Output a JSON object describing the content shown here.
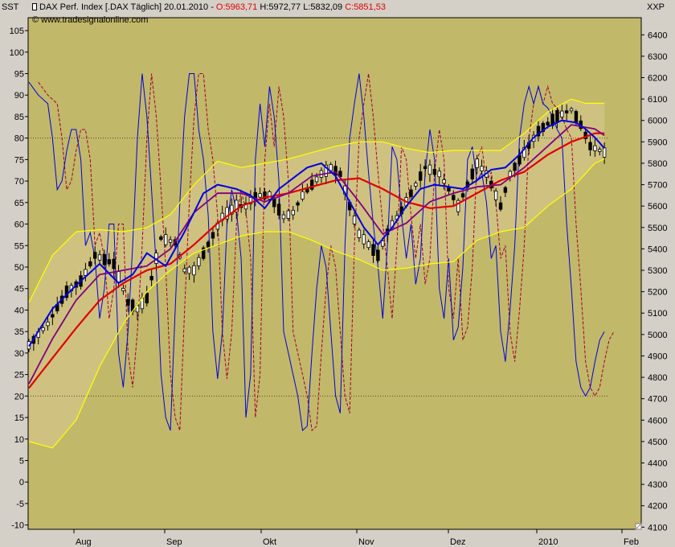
{
  "header": {
    "left_axis_label": "SST",
    "right_axis_label": "XXP",
    "instrument": "DAX Perf. Index [.DAX  Täglich] 20.01.2010 - ",
    "open": "O:5963,71",
    "high": "H:5972,77",
    "low": "L:5832,09",
    "close": "C:5851,53",
    "copyright": "© www.tradesignalonline.com"
  },
  "colors": {
    "background": "#c2b86a",
    "frame": "#d4d0c8",
    "candle": "#000000",
    "ma_blue": "#0000e0",
    "ma_purple": "#800080",
    "ma_red": "#e00000",
    "bollinger": "#ffff00",
    "band_fill": "#d3c689",
    "oscillator": "#0000dd",
    "oscillator_signal": "#a00030"
  },
  "chart_data": {
    "type": "line",
    "title": "DAX Perf. Index [.DAX  Täglich] 20.01.2010",
    "left_axis": {
      "label": "SST",
      "range": [
        -11,
        108
      ],
      "ticks": [
        -10,
        -5,
        0,
        5,
        10,
        15,
        20,
        25,
        30,
        35,
        40,
        45,
        50,
        55,
        60,
        65,
        70,
        75,
        80,
        85,
        90,
        95,
        100,
        105
      ]
    },
    "right_axis": {
      "label": "XXP",
      "range": [
        4090,
        6480
      ],
      "ticks": [
        4100,
        4200,
        4300,
        4400,
        4500,
        4600,
        4700,
        4800,
        4900,
        5000,
        5100,
        5200,
        5300,
        5400,
        5500,
        5600,
        5700,
        5800,
        5900,
        6000,
        6100,
        6200,
        6300,
        6400
      ]
    },
    "x_axis": {
      "months": [
        "Aug",
        "Sep",
        "Okt",
        "Nov",
        "Dez",
        "2010",
        "Feb"
      ]
    },
    "reference_lines": [
      80,
      20
    ],
    "price_path": [
      [
        0,
        4950
      ],
      [
        4,
        5050
      ],
      [
        8,
        5200
      ],
      [
        11,
        5250
      ],
      [
        14,
        5370
      ],
      [
        16,
        5350
      ],
      [
        18,
        5330
      ],
      [
        21,
        5150
      ],
      [
        23,
        5120
      ],
      [
        25,
        5170
      ],
      [
        28,
        5450
      ],
      [
        31,
        5430
      ],
      [
        33,
        5300
      ],
      [
        35,
        5300
      ],
      [
        38,
        5420
      ],
      [
        41,
        5550
      ],
      [
        44,
        5600
      ],
      [
        46,
        5600
      ],
      [
        48,
        5650
      ],
      [
        51,
        5650
      ],
      [
        54,
        5550
      ],
      [
        56,
        5570
      ],
      [
        58,
        5650
      ],
      [
        62,
        5750
      ],
      [
        64,
        5780
      ],
      [
        66,
        5750
      ],
      [
        68,
        5600
      ],
      [
        70,
        5470
      ],
      [
        72,
        5420
      ],
      [
        74,
        5370
      ],
      [
        76,
        5480
      ],
      [
        79,
        5580
      ],
      [
        82,
        5700
      ],
      [
        84,
        5780
      ],
      [
        87,
        5750
      ],
      [
        89,
        5680
      ],
      [
        91,
        5600
      ],
      [
        93,
        5700
      ],
      [
        95,
        5800
      ],
      [
        97,
        5750
      ],
      [
        99,
        5650
      ],
      [
        100,
        5600
      ],
      [
        102,
        5750
      ],
      [
        105,
        5850
      ],
      [
        108,
        5950
      ],
      [
        112,
        6020
      ],
      [
        115,
        6050
      ],
      [
        117,
        5980
      ],
      [
        119,
        5880
      ],
      [
        121,
        5860
      ],
      [
        122,
        5850
      ]
    ],
    "osc_path": [
      [
        0,
        93
      ],
      [
        2,
        90
      ],
      [
        4,
        88
      ],
      [
        5,
        80
      ],
      [
        6,
        68
      ],
      [
        7,
        70
      ],
      [
        8,
        77
      ],
      [
        9,
        82
      ],
      [
        10,
        82
      ],
      [
        11,
        75
      ],
      [
        12,
        55
      ],
      [
        13,
        58
      ],
      [
        14,
        52
      ],
      [
        15,
        38
      ],
      [
        16,
        45
      ],
      [
        17,
        60
      ],
      [
        18,
        60
      ],
      [
        19,
        30
      ],
      [
        20,
        22
      ],
      [
        21,
        35
      ],
      [
        22,
        55
      ],
      [
        23,
        80
      ],
      [
        24,
        95
      ],
      [
        25,
        85
      ],
      [
        26,
        68
      ],
      [
        27,
        50
      ],
      [
        28,
        25
      ],
      [
        29,
        15
      ],
      [
        30,
        12
      ],
      [
        31,
        40
      ],
      [
        32,
        65
      ],
      [
        33,
        85
      ],
      [
        34,
        95
      ],
      [
        35,
        95
      ],
      [
        36,
        82
      ],
      [
        37,
        75
      ],
      [
        38,
        62
      ],
      [
        39,
        35
      ],
      [
        40,
        24
      ],
      [
        41,
        35
      ],
      [
        42,
        60
      ],
      [
        43,
        68
      ],
      [
        44,
        63
      ],
      [
        45,
        52
      ],
      [
        46,
        15
      ],
      [
        47,
        25
      ],
      [
        48,
        75
      ],
      [
        49,
        88
      ],
      [
        50,
        78
      ],
      [
        51,
        92
      ],
      [
        52,
        85
      ],
      [
        53,
        70
      ],
      [
        54,
        35
      ],
      [
        55,
        30
      ],
      [
        56,
        25
      ],
      [
        57,
        20
      ],
      [
        58,
        12
      ],
      [
        59,
        13
      ],
      [
        60,
        30
      ],
      [
        61,
        45
      ],
      [
        62,
        55
      ],
      [
        63,
        50
      ],
      [
        64,
        35
      ],
      [
        65,
        20
      ],
      [
        66,
        16
      ],
      [
        67,
        55
      ],
      [
        68,
        80
      ],
      [
        69,
        88
      ],
      [
        70,
        95
      ],
      [
        71,
        85
      ],
      [
        72,
        72
      ],
      [
        73,
        60
      ],
      [
        74,
        50
      ],
      [
        75,
        38
      ],
      [
        76,
        55
      ],
      [
        77,
        78
      ],
      [
        78,
        75
      ],
      [
        79,
        62
      ],
      [
        80,
        52
      ],
      [
        81,
        60
      ],
      [
        82,
        46
      ],
      [
        83,
        52
      ],
      [
        84,
        72
      ],
      [
        85,
        82
      ],
      [
        86,
        75
      ],
      [
        87,
        45
      ],
      [
        88,
        38
      ],
      [
        89,
        52
      ],
      [
        90,
        33
      ],
      [
        91,
        36
      ],
      [
        92,
        50
      ],
      [
        93,
        75
      ],
      [
        94,
        78
      ],
      [
        95,
        70
      ],
      [
        96,
        72
      ],
      [
        97,
        65
      ],
      [
        98,
        52
      ],
      [
        99,
        55
      ],
      [
        100,
        35
      ],
      [
        101,
        28
      ],
      [
        102,
        40
      ],
      [
        103,
        55
      ],
      [
        104,
        80
      ],
      [
        105,
        88
      ],
      [
        106,
        92
      ],
      [
        107,
        88
      ],
      [
        108,
        92
      ],
      [
        109,
        88
      ],
      [
        110,
        87
      ],
      [
        111,
        85
      ],
      [
        112,
        82
      ],
      [
        113,
        80
      ],
      [
        114,
        60
      ],
      [
        115,
        45
      ],
      [
        116,
        28
      ],
      [
        117,
        22
      ],
      [
        118,
        20
      ],
      [
        119,
        22
      ],
      [
        120,
        28
      ],
      [
        121,
        33
      ],
      [
        122,
        35
      ]
    ],
    "ma_blue": [
      [
        0,
        4945
      ],
      [
        5,
        5120
      ],
      [
        10,
        5230
      ],
      [
        15,
        5330
      ],
      [
        19,
        5240
      ],
      [
        22,
        5280
      ],
      [
        25,
        5380
      ],
      [
        29,
        5320
      ],
      [
        33,
        5480
      ],
      [
        37,
        5660
      ],
      [
        40,
        5700
      ],
      [
        44,
        5680
      ],
      [
        47,
        5650
      ],
      [
        50,
        5590
      ],
      [
        53,
        5680
      ],
      [
        56,
        5730
      ],
      [
        59,
        5780
      ],
      [
        62,
        5800
      ],
      [
        65,
        5740
      ],
      [
        68,
        5620
      ],
      [
        71,
        5500
      ],
      [
        74,
        5420
      ],
      [
        77,
        5500
      ],
      [
        80,
        5600
      ],
      [
        83,
        5680
      ],
      [
        86,
        5700
      ],
      [
        89,
        5690
      ],
      [
        92,
        5680
      ],
      [
        95,
        5720
      ],
      [
        98,
        5770
      ],
      [
        101,
        5780
      ],
      [
        104,
        5840
      ],
      [
        107,
        5920
      ],
      [
        110,
        5970
      ],
      [
        113,
        6000
      ],
      [
        116,
        5990
      ],
      [
        118,
        5960
      ],
      [
        120,
        5920
      ],
      [
        122,
        5870
      ]
    ],
    "ma_purple": [
      [
        0,
        4770
      ],
      [
        5,
        4980
      ],
      [
        10,
        5160
      ],
      [
        15,
        5280
      ],
      [
        20,
        5300
      ],
      [
        25,
        5320
      ],
      [
        30,
        5400
      ],
      [
        35,
        5570
      ],
      [
        40,
        5660
      ],
      [
        45,
        5660
      ],
      [
        50,
        5620
      ],
      [
        55,
        5660
      ],
      [
        60,
        5740
      ],
      [
        65,
        5760
      ],
      [
        70,
        5620
      ],
      [
        75,
        5470
      ],
      [
        80,
        5520
      ],
      [
        85,
        5620
      ],
      [
        90,
        5660
      ],
      [
        95,
        5690
      ],
      [
        100,
        5700
      ],
      [
        105,
        5780
      ],
      [
        110,
        5880
      ],
      [
        115,
        5980
      ],
      [
        120,
        5960
      ],
      [
        122,
        5930
      ]
    ],
    "ma_red": [
      [
        0,
        4750
      ],
      [
        5,
        4890
      ],
      [
        10,
        5030
      ],
      [
        15,
        5160
      ],
      [
        20,
        5240
      ],
      [
        25,
        5300
      ],
      [
        30,
        5330
      ],
      [
        35,
        5420
      ],
      [
        40,
        5520
      ],
      [
        45,
        5600
      ],
      [
        50,
        5640
      ],
      [
        55,
        5660
      ],
      [
        60,
        5690
      ],
      [
        65,
        5720
      ],
      [
        70,
        5730
      ],
      [
        75,
        5680
      ],
      [
        80,
        5620
      ],
      [
        85,
        5590
      ],
      [
        90,
        5600
      ],
      [
        95,
        5660
      ],
      [
        100,
        5720
      ],
      [
        105,
        5760
      ],
      [
        110,
        5840
      ],
      [
        115,
        5900
      ],
      [
        120,
        5940
      ],
      [
        122,
        5940
      ]
    ],
    "bb_upper": [
      [
        0,
        5150
      ],
      [
        5,
        5370
      ],
      [
        10,
        5480
      ],
      [
        15,
        5490
      ],
      [
        20,
        5480
      ],
      [
        25,
        5500
      ],
      [
        30,
        5560
      ],
      [
        35,
        5700
      ],
      [
        40,
        5810
      ],
      [
        45,
        5780
      ],
      [
        50,
        5800
      ],
      [
        55,
        5820
      ],
      [
        60,
        5850
      ],
      [
        65,
        5880
      ],
      [
        70,
        5900
      ],
      [
        75,
        5900
      ],
      [
        80,
        5870
      ],
      [
        85,
        5850
      ],
      [
        90,
        5860
      ],
      [
        95,
        5860
      ],
      [
        100,
        5860
      ],
      [
        105,
        5940
      ],
      [
        110,
        6040
      ],
      [
        115,
        6100
      ],
      [
        118,
        6080
      ],
      [
        122,
        6080
      ]
    ],
    "bb_lower": [
      [
        0,
        4500
      ],
      [
        5,
        4470
      ],
      [
        10,
        4600
      ],
      [
        15,
        4850
      ],
      [
        20,
        5050
      ],
      [
        25,
        5200
      ],
      [
        30,
        5300
      ],
      [
        35,
        5380
      ],
      [
        40,
        5420
      ],
      [
        45,
        5460
      ],
      [
        50,
        5480
      ],
      [
        55,
        5480
      ],
      [
        60,
        5440
      ],
      [
        65,
        5390
      ],
      [
        70,
        5350
      ],
      [
        75,
        5300
      ],
      [
        80,
        5310
      ],
      [
        85,
        5330
      ],
      [
        90,
        5340
      ],
      [
        95,
        5440
      ],
      [
        100,
        5480
      ],
      [
        105,
        5500
      ],
      [
        110,
        5600
      ],
      [
        115,
        5680
      ],
      [
        120,
        5800
      ],
      [
        122,
        5820
      ]
    ]
  }
}
